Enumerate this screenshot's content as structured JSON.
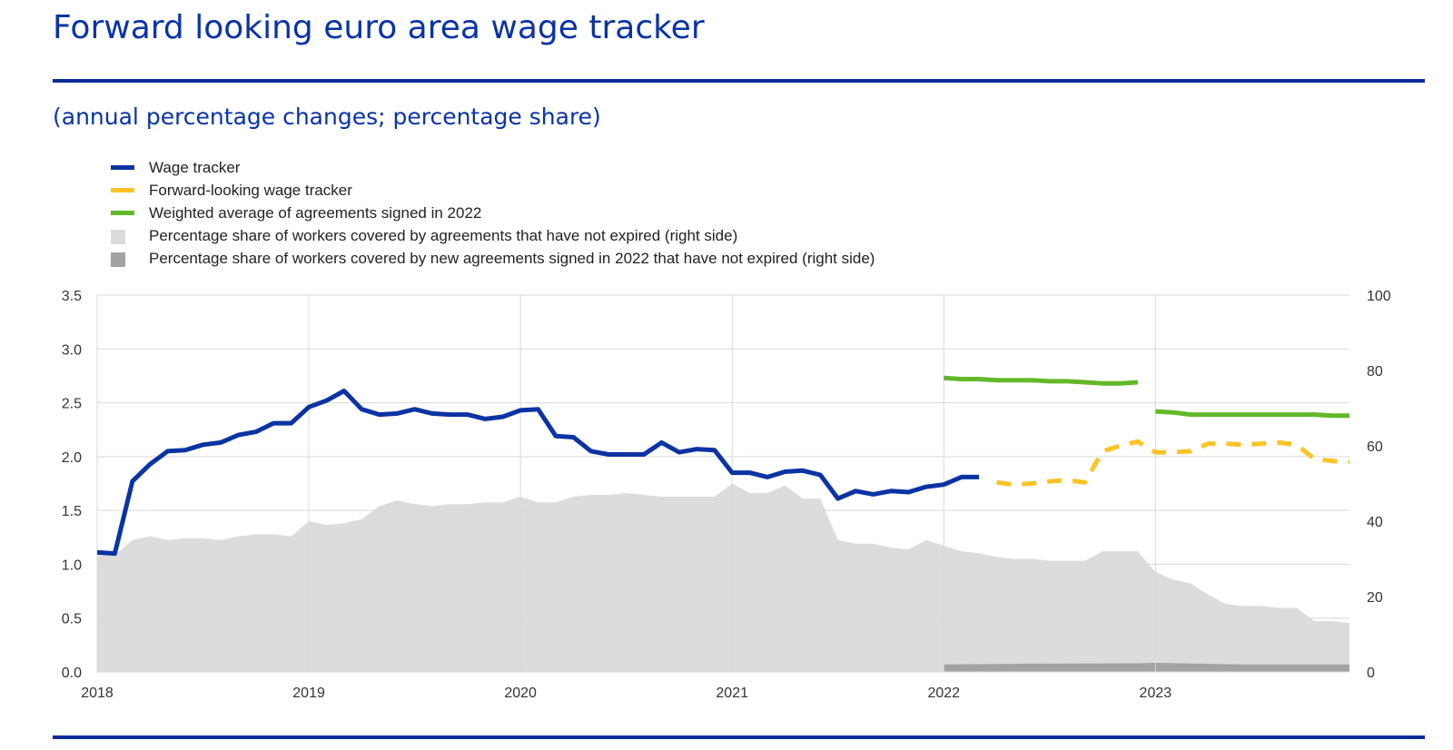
{
  "header": {
    "title": "Forward looking euro area wage tracker",
    "subtitle": "(annual percentage changes; percentage share)"
  },
  "colors": {
    "accent": "#0a33a6",
    "wage_tracker": "#0b33a3",
    "forward_looking": "#fbc326",
    "weighted_average": "#62b928",
    "share_all": "#dcdcdc",
    "share_new": "#a3a3a3"
  },
  "legend": [
    {
      "label": "Wage tracker",
      "kind": "line",
      "color": "#0b33a3"
    },
    {
      "label": "Forward-looking wage tracker",
      "kind": "line",
      "color": "#fbc326"
    },
    {
      "label": "Weighted average of agreements signed in 2022",
      "kind": "line",
      "color": "#62b928"
    },
    {
      "label": "Percentage share of workers covered by agreements that have not expired (right side)",
      "kind": "box",
      "color": "#dcdcdc"
    },
    {
      "label": "Percentage share of workers covered by new agreements signed in 2022 that have not expired (right side)",
      "kind": "box",
      "color": "#a3a3a3"
    }
  ],
  "chart_data": {
    "type": "line",
    "x_ticks": [
      "2018",
      "2019",
      "2020",
      "2021",
      "2022",
      "2023"
    ],
    "y_left_ticks": [
      "0.0",
      "0.5",
      "1.0",
      "1.5",
      "2.0",
      "2.5",
      "3.0",
      "3.5"
    ],
    "y_right_ticks": [
      "0",
      "20",
      "40",
      "60",
      "80",
      "100"
    ],
    "ylim_left": [
      0,
      3.5
    ],
    "ylim_right": [
      0,
      100
    ],
    "xlim": [
      "2018-01",
      "2023-12"
    ],
    "grid": true,
    "legend_position": "top-left",
    "series": [
      {
        "name": "Wage tracker",
        "type": "line",
        "axis": "left",
        "points": [
          [
            "2018-01",
            1.11
          ],
          [
            "2018-02",
            1.1
          ],
          [
            "2018-03",
            1.77
          ],
          [
            "2018-04",
            1.93
          ],
          [
            "2018-05",
            2.05
          ],
          [
            "2018-06",
            2.06
          ],
          [
            "2018-07",
            2.11
          ],
          [
            "2018-08",
            2.13
          ],
          [
            "2018-09",
            2.2
          ],
          [
            "2018-10",
            2.23
          ],
          [
            "2018-11",
            2.31
          ],
          [
            "2018-12",
            2.31
          ],
          [
            "2019-01",
            2.46
          ],
          [
            "2019-02",
            2.52
          ],
          [
            "2019-03",
            2.61
          ],
          [
            "2019-04",
            2.44
          ],
          [
            "2019-05",
            2.39
          ],
          [
            "2019-06",
            2.4
          ],
          [
            "2019-07",
            2.44
          ],
          [
            "2019-08",
            2.4
          ],
          [
            "2019-09",
            2.39
          ],
          [
            "2019-10",
            2.39
          ],
          [
            "2019-11",
            2.35
          ],
          [
            "2019-12",
            2.37
          ],
          [
            "2020-01",
            2.43
          ],
          [
            "2020-02",
            2.44
          ],
          [
            "2020-03",
            2.19
          ],
          [
            "2020-04",
            2.18
          ],
          [
            "2020-05",
            2.05
          ],
          [
            "2020-06",
            2.02
          ],
          [
            "2020-07",
            2.02
          ],
          [
            "2020-08",
            2.02
          ],
          [
            "2020-09",
            2.13
          ],
          [
            "2020-10",
            2.04
          ],
          [
            "2020-11",
            2.07
          ],
          [
            "2020-12",
            2.06
          ],
          [
            "2021-01",
            1.85
          ],
          [
            "2021-02",
            1.85
          ],
          [
            "2021-03",
            1.81
          ],
          [
            "2021-04",
            1.86
          ],
          [
            "2021-05",
            1.87
          ],
          [
            "2021-06",
            1.83
          ],
          [
            "2021-07",
            1.61
          ],
          [
            "2021-08",
            1.68
          ],
          [
            "2021-09",
            1.65
          ],
          [
            "2021-10",
            1.68
          ],
          [
            "2021-11",
            1.67
          ],
          [
            "2021-12",
            1.72
          ],
          [
            "2022-01",
            1.74
          ],
          [
            "2022-02",
            1.81
          ],
          [
            "2022-03",
            1.81
          ]
        ]
      },
      {
        "name": "Forward-looking wage tracker",
        "type": "dashed-line",
        "axis": "left",
        "points": [
          [
            "2022-04",
            1.76
          ],
          [
            "2022-05",
            1.74
          ],
          [
            "2022-06",
            1.75
          ],
          [
            "2022-07",
            1.77
          ],
          [
            "2022-08",
            1.78
          ],
          [
            "2022-09",
            1.76
          ],
          [
            "2022-10",
            2.05
          ],
          [
            "2022-11",
            2.1
          ],
          [
            "2022-12",
            2.14
          ],
          [
            "2023-01",
            2.04
          ],
          [
            "2023-02",
            2.04
          ],
          [
            "2023-03",
            2.05
          ],
          [
            "2023-04",
            2.12
          ],
          [
            "2023-05",
            2.12
          ],
          [
            "2023-06",
            2.11
          ],
          [
            "2023-07",
            2.12
          ],
          [
            "2023-08",
            2.13
          ],
          [
            "2023-09",
            2.11
          ],
          [
            "2023-10",
            1.98
          ],
          [
            "2023-11",
            1.96
          ],
          [
            "2023-12",
            1.95
          ]
        ]
      },
      {
        "name": "Weighted average of agreements signed in 2022",
        "type": "line",
        "axis": "left",
        "segments": [
          [
            [
              "2022-01",
              2.73
            ],
            [
              "2022-02",
              2.72
            ],
            [
              "2022-03",
              2.72
            ],
            [
              "2022-04",
              2.71
            ],
            [
              "2022-05",
              2.71
            ],
            [
              "2022-06",
              2.71
            ],
            [
              "2022-07",
              2.7
            ],
            [
              "2022-08",
              2.7
            ],
            [
              "2022-09",
              2.69
            ],
            [
              "2022-10",
              2.68
            ],
            [
              "2022-11",
              2.68
            ],
            [
              "2022-12",
              2.69
            ]
          ],
          [
            [
              "2023-01",
              2.42
            ],
            [
              "2023-02",
              2.41
            ],
            [
              "2023-03",
              2.39
            ],
            [
              "2023-04",
              2.39
            ],
            [
              "2023-05",
              2.39
            ],
            [
              "2023-06",
              2.39
            ],
            [
              "2023-07",
              2.39
            ],
            [
              "2023-08",
              2.39
            ],
            [
              "2023-09",
              2.39
            ],
            [
              "2023-10",
              2.39
            ],
            [
              "2023-11",
              2.38
            ],
            [
              "2023-12",
              2.38
            ]
          ]
        ]
      },
      {
        "name": "Percentage share of workers covered by agreements that have not expired (right side)",
        "type": "area",
        "axis": "right",
        "points": [
          [
            "2018-01",
            31
          ],
          [
            "2018-02",
            31
          ],
          [
            "2018-03",
            35
          ],
          [
            "2018-04",
            36
          ],
          [
            "2018-05",
            35
          ],
          [
            "2018-06",
            35.5
          ],
          [
            "2018-07",
            35.5
          ],
          [
            "2018-08",
            35
          ],
          [
            "2018-09",
            36
          ],
          [
            "2018-10",
            36.5
          ],
          [
            "2018-11",
            36.5
          ],
          [
            "2018-12",
            36
          ],
          [
            "2019-01",
            40
          ],
          [
            "2019-02",
            39
          ],
          [
            "2019-03",
            39.5
          ],
          [
            "2019-04",
            40.5
          ],
          [
            "2019-05",
            44
          ],
          [
            "2019-06",
            45.5
          ],
          [
            "2019-07",
            44.5
          ],
          [
            "2019-08",
            44
          ],
          [
            "2019-09",
            44.5
          ],
          [
            "2019-10",
            44.5
          ],
          [
            "2019-11",
            45
          ],
          [
            "2019-12",
            45
          ],
          [
            "2020-01",
            46.5
          ],
          [
            "2020-02",
            45
          ],
          [
            "2020-03",
            45
          ],
          [
            "2020-04",
            46.5
          ],
          [
            "2020-05",
            47
          ],
          [
            "2020-06",
            47
          ],
          [
            "2020-07",
            47.5
          ],
          [
            "2020-08",
            47
          ],
          [
            "2020-09",
            46.5
          ],
          [
            "2020-10",
            46.5
          ],
          [
            "2020-11",
            46.5
          ],
          [
            "2020-12",
            46.5
          ],
          [
            "2021-01",
            50
          ],
          [
            "2021-02",
            47.5
          ],
          [
            "2021-03",
            47.5
          ],
          [
            "2021-04",
            49.5
          ],
          [
            "2021-05",
            46
          ],
          [
            "2021-06",
            46
          ],
          [
            "2021-07",
            35
          ],
          [
            "2021-08",
            34
          ],
          [
            "2021-09",
            34
          ],
          [
            "2021-10",
            33
          ],
          [
            "2021-11",
            32.5
          ],
          [
            "2021-12",
            35
          ],
          [
            "2022-01",
            33.5
          ],
          [
            "2022-02",
            32
          ],
          [
            "2022-03",
            31.5
          ],
          [
            "2022-04",
            30.5
          ],
          [
            "2022-05",
            30
          ],
          [
            "2022-06",
            30
          ],
          [
            "2022-07",
            29.5
          ],
          [
            "2022-08",
            29.5
          ],
          [
            "2022-09",
            29.5
          ],
          [
            "2022-10",
            32
          ],
          [
            "2022-11",
            32
          ],
          [
            "2022-12",
            32
          ],
          [
            "2023-01",
            26.5
          ],
          [
            "2023-02",
            24.5
          ],
          [
            "2023-03",
            23.5
          ],
          [
            "2023-04",
            20.5
          ],
          [
            "2023-05",
            18
          ],
          [
            "2023-06",
            17.5
          ],
          [
            "2023-07",
            17.5
          ],
          [
            "2023-08",
            17
          ],
          [
            "2023-09",
            17
          ],
          [
            "2023-10",
            13.5
          ],
          [
            "2023-11",
            13.5
          ],
          [
            "2023-12",
            13
          ]
        ]
      },
      {
        "name": "Percentage share of workers covered by new agreements signed in 2022 that have not expired (right side)",
        "type": "area",
        "axis": "right",
        "points": [
          [
            "2022-01",
            2
          ],
          [
            "2022-06",
            2.2
          ],
          [
            "2022-12",
            2.3
          ],
          [
            "2023-01",
            2.4
          ],
          [
            "2023-06",
            2
          ],
          [
            "2023-12",
            2
          ]
        ]
      }
    ]
  }
}
